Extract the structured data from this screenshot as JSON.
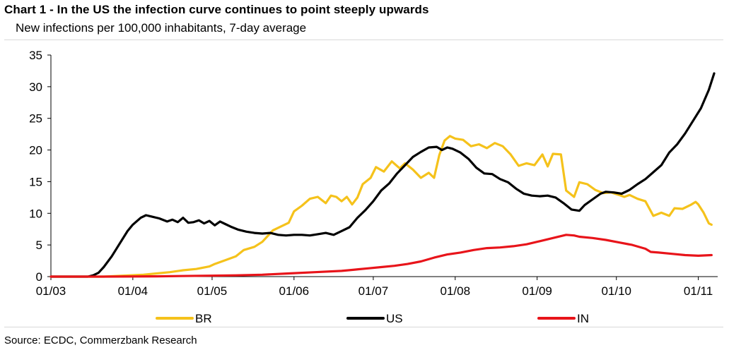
{
  "header": {
    "title": "Chart 1 - In the US the infection curve continues to point steeply upwards",
    "subtitle": "New infections per 100,000 inhabitants, 7-day average"
  },
  "footer": {
    "source": "Source: ECDC, Commerzbank Research"
  },
  "chart_data": {
    "type": "line",
    "title": "Chart 1 - In the US the infection curve continues to point steeply upwards",
    "subtitle": "New infections per 100,000 inhabitants, 7-day average",
    "xlabel": "",
    "ylabel": "",
    "ylim": [
      0,
      35
    ],
    "xlim": [
      0,
      251
    ],
    "yticks": [
      0,
      5,
      10,
      15,
      20,
      25,
      30,
      35
    ],
    "xticks": [
      {
        "day": 0,
        "label": "01/03"
      },
      {
        "day": 31,
        "label": "01/04"
      },
      {
        "day": 61,
        "label": "01/05"
      },
      {
        "day": 92,
        "label": "01/06"
      },
      {
        "day": 122,
        "label": "01/07"
      },
      {
        "day": 153,
        "label": "01/08"
      },
      {
        "day": 184,
        "label": "01/09"
      },
      {
        "day": 214,
        "label": "01/10"
      },
      {
        "day": 245,
        "label": "01/11"
      }
    ],
    "x_unit": "days since 01/03",
    "grid": false,
    "legend_position": "bottom",
    "series": [
      {
        "name": "BR",
        "color": "#F5C21B",
        "points": [
          [
            0,
            0
          ],
          [
            10,
            0
          ],
          [
            20,
            0
          ],
          [
            25,
            0.1
          ],
          [
            30,
            0.2
          ],
          [
            35,
            0.3
          ],
          [
            40,
            0.5
          ],
          [
            45,
            0.7
          ],
          [
            50,
            1
          ],
          [
            55,
            1.2
          ],
          [
            60,
            1.6
          ],
          [
            62,
            2
          ],
          [
            66,
            2.6
          ],
          [
            70,
            3.2
          ],
          [
            73,
            4.2
          ],
          [
            77,
            4.7
          ],
          [
            80,
            5.5
          ],
          [
            84,
            7.3
          ],
          [
            87,
            7.9
          ],
          [
            90,
            8.5
          ],
          [
            92,
            10.3
          ],
          [
            95,
            11.2
          ],
          [
            98,
            12.3
          ],
          [
            101,
            12.6
          ],
          [
            104,
            11.6
          ],
          [
            106,
            12.8
          ],
          [
            108,
            12.6
          ],
          [
            110,
            11.9
          ],
          [
            112,
            12.6
          ],
          [
            114,
            11.4
          ],
          [
            116,
            12.5
          ],
          [
            118,
            14.6
          ],
          [
            121,
            15.6
          ],
          [
            123,
            17.3
          ],
          [
            126,
            16.6
          ],
          [
            129,
            18.2
          ],
          [
            132,
            17.1
          ],
          [
            134,
            17.9
          ],
          [
            137,
            16.9
          ],
          [
            140,
            15.6
          ],
          [
            143,
            16.4
          ],
          [
            145,
            15.6
          ],
          [
            147,
            19.2
          ],
          [
            149,
            21.5
          ],
          [
            151,
            22.2
          ],
          [
            153,
            21.8
          ],
          [
            156,
            21.6
          ],
          [
            159,
            20.6
          ],
          [
            162,
            20.9
          ],
          [
            165,
            20.3
          ],
          [
            168,
            21.1
          ],
          [
            171,
            20.6
          ],
          [
            174,
            19.3
          ],
          [
            177,
            17.5
          ],
          [
            180,
            17.9
          ],
          [
            183,
            17.6
          ],
          [
            186,
            19.3
          ],
          [
            188,
            17.4
          ],
          [
            190,
            19.4
          ],
          [
            193,
            19.3
          ],
          [
            195,
            13.6
          ],
          [
            198,
            12.6
          ],
          [
            200,
            14.9
          ],
          [
            203,
            14.6
          ],
          [
            206,
            13.7
          ],
          [
            209,
            13.2
          ],
          [
            212,
            13.3
          ],
          [
            215,
            12.9
          ],
          [
            217,
            12.6
          ],
          [
            219,
            12.9
          ],
          [
            222,
            12.3
          ],
          [
            225,
            11.9
          ],
          [
            228,
            9.6
          ],
          [
            231,
            10.1
          ],
          [
            234,
            9.6
          ],
          [
            236,
            10.8
          ],
          [
            239,
            10.7
          ],
          [
            242,
            11.3
          ],
          [
            244,
            11.8
          ],
          [
            245,
            11.4
          ],
          [
            247,
            10.1
          ],
          [
            249,
            8.4
          ],
          [
            250,
            8.2
          ]
        ]
      },
      {
        "name": "US",
        "color": "#000000",
        "points": [
          [
            0,
            0
          ],
          [
            14,
            0
          ],
          [
            16,
            0.2
          ],
          [
            18,
            0.6
          ],
          [
            20,
            1.5
          ],
          [
            23,
            3.2
          ],
          [
            26,
            5.2
          ],
          [
            29,
            7.2
          ],
          [
            31,
            8.2
          ],
          [
            34,
            9.3
          ],
          [
            36,
            9.7
          ],
          [
            38,
            9.5
          ],
          [
            41,
            9.2
          ],
          [
            44,
            8.7
          ],
          [
            46,
            9
          ],
          [
            48,
            8.6
          ],
          [
            50,
            9.3
          ],
          [
            52,
            8.5
          ],
          [
            54,
            8.6
          ],
          [
            56,
            8.9
          ],
          [
            58,
            8.4
          ],
          [
            60,
            8.8
          ],
          [
            62,
            8.1
          ],
          [
            64,
            8.7
          ],
          [
            66,
            8.3
          ],
          [
            68,
            7.9
          ],
          [
            71,
            7.4
          ],
          [
            74,
            7.1
          ],
          [
            77,
            6.9
          ],
          [
            80,
            6.8
          ],
          [
            83,
            6.9
          ],
          [
            86,
            6.6
          ],
          [
            89,
            6.5
          ],
          [
            92,
            6.6
          ],
          [
            95,
            6.6
          ],
          [
            98,
            6.5
          ],
          [
            101,
            6.7
          ],
          [
            104,
            6.9
          ],
          [
            107,
            6.6
          ],
          [
            110,
            7.2
          ],
          [
            113,
            7.8
          ],
          [
            116,
            9.3
          ],
          [
            119,
            10.5
          ],
          [
            122,
            11.9
          ],
          [
            125,
            13.6
          ],
          [
            128,
            14.7
          ],
          [
            131,
            16.3
          ],
          [
            134,
            17.6
          ],
          [
            137,
            18.9
          ],
          [
            140,
            19.7
          ],
          [
            143,
            20.4
          ],
          [
            146,
            20.5
          ],
          [
            148,
            20
          ],
          [
            150,
            20.4
          ],
          [
            152,
            20.2
          ],
          [
            155,
            19.6
          ],
          [
            158,
            18.6
          ],
          [
            161,
            17.2
          ],
          [
            164,
            16.3
          ],
          [
            167,
            16.2
          ],
          [
            170,
            15.4
          ],
          [
            173,
            14.9
          ],
          [
            176,
            13.9
          ],
          [
            179,
            13.1
          ],
          [
            182,
            12.8
          ],
          [
            185,
            12.7
          ],
          [
            188,
            12.8
          ],
          [
            191,
            12.5
          ],
          [
            194,
            11.6
          ],
          [
            197,
            10.6
          ],
          [
            200,
            10.4
          ],
          [
            202,
            11.3
          ],
          [
            205,
            12.2
          ],
          [
            208,
            13.1
          ],
          [
            210,
            13.4
          ],
          [
            213,
            13.3
          ],
          [
            216,
            13.1
          ],
          [
            219,
            13.7
          ],
          [
            222,
            14.6
          ],
          [
            225,
            15.4
          ],
          [
            228,
            16.5
          ],
          [
            231,
            17.6
          ],
          [
            234,
            19.6
          ],
          [
            237,
            20.9
          ],
          [
            240,
            22.6
          ],
          [
            243,
            24.6
          ],
          [
            246,
            26.6
          ],
          [
            249,
            29.5
          ],
          [
            251,
            32.1
          ]
        ]
      },
      {
        "name": "IN",
        "color": "#E8141A",
        "points": [
          [
            0,
            0
          ],
          [
            20,
            0
          ],
          [
            40,
            0.05
          ],
          [
            60,
            0.15
          ],
          [
            70,
            0.2
          ],
          [
            80,
            0.3
          ],
          [
            90,
            0.5
          ],
          [
            100,
            0.7
          ],
          [
            110,
            0.9
          ],
          [
            115,
            1.1
          ],
          [
            120,
            1.3
          ],
          [
            125,
            1.5
          ],
          [
            130,
            1.7
          ],
          [
            135,
            2
          ],
          [
            140,
            2.4
          ],
          [
            145,
            3
          ],
          [
            150,
            3.5
          ],
          [
            155,
            3.8
          ],
          [
            160,
            4.2
          ],
          [
            165,
            4.5
          ],
          [
            170,
            4.6
          ],
          [
            175,
            4.8
          ],
          [
            180,
            5.1
          ],
          [
            185,
            5.6
          ],
          [
            190,
            6.1
          ],
          [
            195,
            6.6
          ],
          [
            198,
            6.5
          ],
          [
            200,
            6.3
          ],
          [
            205,
            6.1
          ],
          [
            210,
            5.8
          ],
          [
            215,
            5.4
          ],
          [
            220,
            5
          ],
          [
            225,
            4.4
          ],
          [
            227,
            3.9
          ],
          [
            230,
            3.8
          ],
          [
            235,
            3.6
          ],
          [
            240,
            3.4
          ],
          [
            245,
            3.3
          ],
          [
            250,
            3.4
          ]
        ]
      }
    ]
  }
}
